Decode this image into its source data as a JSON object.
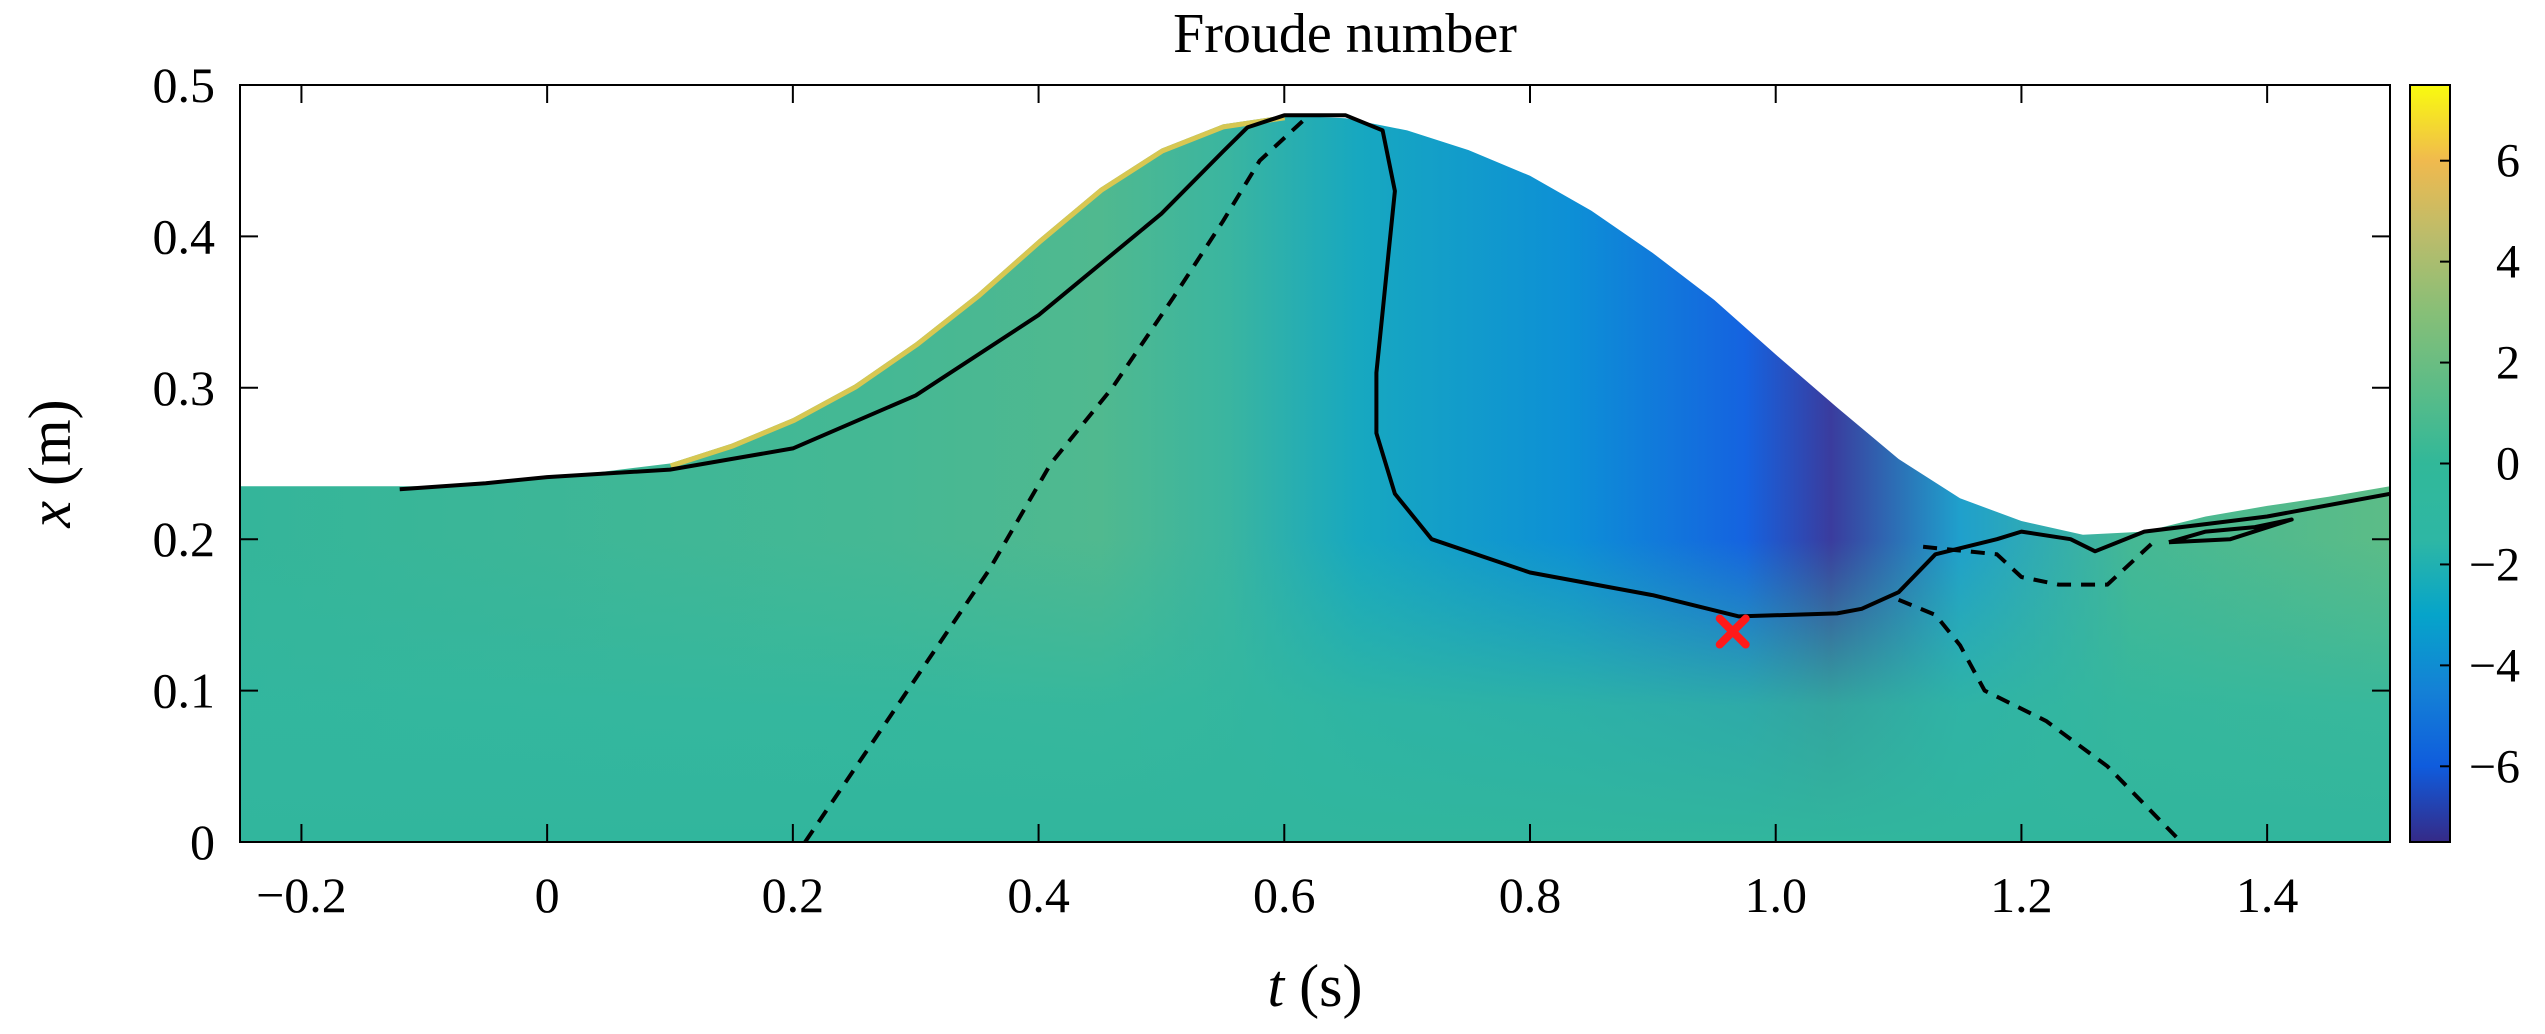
{
  "chart_data": {
    "type": "heatmap",
    "title": "Froude number",
    "xlabel": {
      "var": "t",
      "unit": " (s)"
    },
    "ylabel": {
      "var": "x",
      "unit": " (m)"
    },
    "xlim": [
      -0.25,
      1.5
    ],
    "ylim": [
      0,
      0.5
    ],
    "xticks": [
      {
        "value": -0.2,
        "label": "−0.2"
      },
      {
        "value": 0,
        "label": "0"
      },
      {
        "value": 0.2,
        "label": "0.2"
      },
      {
        "value": 0.4,
        "label": "0.4"
      },
      {
        "value": 0.6,
        "label": "0.6"
      },
      {
        "value": 0.8,
        "label": "0.8"
      },
      {
        "value": 1.0,
        "label": "1.0"
      },
      {
        "value": 1.2,
        "label": "1.2"
      },
      {
        "value": 1.4,
        "label": "1.4"
      }
    ],
    "yticks": [
      {
        "value": 0,
        "label": "0"
      },
      {
        "value": 0.1,
        "label": "0.1"
      },
      {
        "value": 0.2,
        "label": "0.2"
      },
      {
        "value": 0.3,
        "label": "0.3"
      },
      {
        "value": 0.4,
        "label": "0.4"
      },
      {
        "value": 0.5,
        "label": "0.5"
      }
    ],
    "colorbar": {
      "range": [
        -7.5,
        7.5
      ],
      "colormap": "parula",
      "ticks": [
        {
          "value": 6,
          "label": "6"
        },
        {
          "value": 4,
          "label": "4"
        },
        {
          "value": 2,
          "label": "2"
        },
        {
          "value": 0,
          "label": "0"
        },
        {
          "value": -2,
          "label": "−2"
        },
        {
          "value": -4,
          "label": "−4"
        },
        {
          "value": -6,
          "label": "−6"
        }
      ]
    },
    "free_surface": [
      [
        -0.25,
        0.235
      ],
      [
        -0.1,
        0.235
      ],
      [
        0.0,
        0.24
      ],
      [
        0.1,
        0.25
      ],
      [
        0.15,
        0.263
      ],
      [
        0.2,
        0.28
      ],
      [
        0.25,
        0.302
      ],
      [
        0.3,
        0.33
      ],
      [
        0.35,
        0.362
      ],
      [
        0.4,
        0.398
      ],
      [
        0.45,
        0.432
      ],
      [
        0.5,
        0.458
      ],
      [
        0.55,
        0.474
      ],
      [
        0.6,
        0.48
      ],
      [
        0.65,
        0.478
      ],
      [
        0.7,
        0.47
      ],
      [
        0.75,
        0.457
      ],
      [
        0.8,
        0.44
      ],
      [
        0.85,
        0.417
      ],
      [
        0.9,
        0.389
      ],
      [
        0.95,
        0.358
      ],
      [
        1.0,
        0.322
      ],
      [
        1.05,
        0.287
      ],
      [
        1.1,
        0.253
      ],
      [
        1.15,
        0.227
      ],
      [
        1.2,
        0.212
      ],
      [
        1.25,
        0.203
      ],
      [
        1.3,
        0.205
      ],
      [
        1.35,
        0.215
      ],
      [
        1.4,
        0.222
      ],
      [
        1.45,
        0.228
      ],
      [
        1.5,
        0.235
      ]
    ],
    "contours": {
      "solid_upper": [
        [
          -0.12,
          0.233
        ],
        [
          -0.05,
          0.237
        ],
        [
          0.0,
          0.241
        ],
        [
          0.1,
          0.246
        ],
        [
          0.2,
          0.26
        ],
        [
          0.3,
          0.295
        ],
        [
          0.4,
          0.348
        ],
        [
          0.5,
          0.415
        ],
        [
          0.55,
          0.456
        ],
        [
          0.57,
          0.472
        ],
        [
          0.6,
          0.48
        ],
        [
          0.65,
          0.48
        ],
        [
          0.68,
          0.47
        ],
        [
          0.69,
          0.43
        ],
        [
          0.685,
          0.39
        ],
        [
          0.68,
          0.35
        ],
        [
          0.675,
          0.31
        ],
        [
          0.675,
          0.27
        ],
        [
          0.69,
          0.23
        ],
        [
          0.72,
          0.2
        ],
        [
          0.8,
          0.178
        ],
        [
          0.9,
          0.163
        ],
        [
          0.97,
          0.149
        ],
        [
          1.05,
          0.151
        ],
        [
          1.07,
          0.154
        ],
        [
          1.1,
          0.165
        ],
        [
          1.13,
          0.19
        ],
        [
          1.18,
          0.2
        ],
        [
          1.2,
          0.205
        ],
        [
          1.24,
          0.2
        ],
        [
          1.26,
          0.192
        ],
        [
          1.3,
          0.205
        ],
        [
          1.35,
          0.21
        ],
        [
          1.4,
          0.215
        ],
        [
          1.5,
          0.23
        ]
      ],
      "solid_lower_loop": [
        [
          1.32,
          0.198
        ],
        [
          1.37,
          0.2
        ],
        [
          1.42,
          0.213
        ],
        [
          1.39,
          0.208
        ],
        [
          1.35,
          0.205
        ],
        [
          1.32,
          0.198
        ]
      ],
      "dashed_left": [
        [
          0.21,
          0.0
        ],
        [
          0.26,
          0.06
        ],
        [
          0.31,
          0.12
        ],
        [
          0.36,
          0.18
        ],
        [
          0.41,
          0.25
        ],
        [
          0.46,
          0.3
        ],
        [
          0.51,
          0.36
        ],
        [
          0.55,
          0.41
        ],
        [
          0.58,
          0.45
        ],
        [
          0.62,
          0.48
        ]
      ],
      "dashed_right": [
        [
          1.1,
          0.16
        ],
        [
          1.13,
          0.15
        ],
        [
          1.15,
          0.13
        ],
        [
          1.17,
          0.1
        ],
        [
          1.22,
          0.08
        ],
        [
          1.27,
          0.05
        ],
        [
          1.33,
          0.0
        ]
      ],
      "dashed_right_upper": [
        [
          1.12,
          0.195
        ],
        [
          1.18,
          0.19
        ],
        [
          1.2,
          0.175
        ],
        [
          1.23,
          0.17
        ],
        [
          1.27,
          0.17
        ],
        [
          1.31,
          0.2
        ]
      ]
    },
    "marker": {
      "t": 0.965,
      "x": 0.139,
      "symbol": "x",
      "color": "#ff1a1a"
    }
  }
}
